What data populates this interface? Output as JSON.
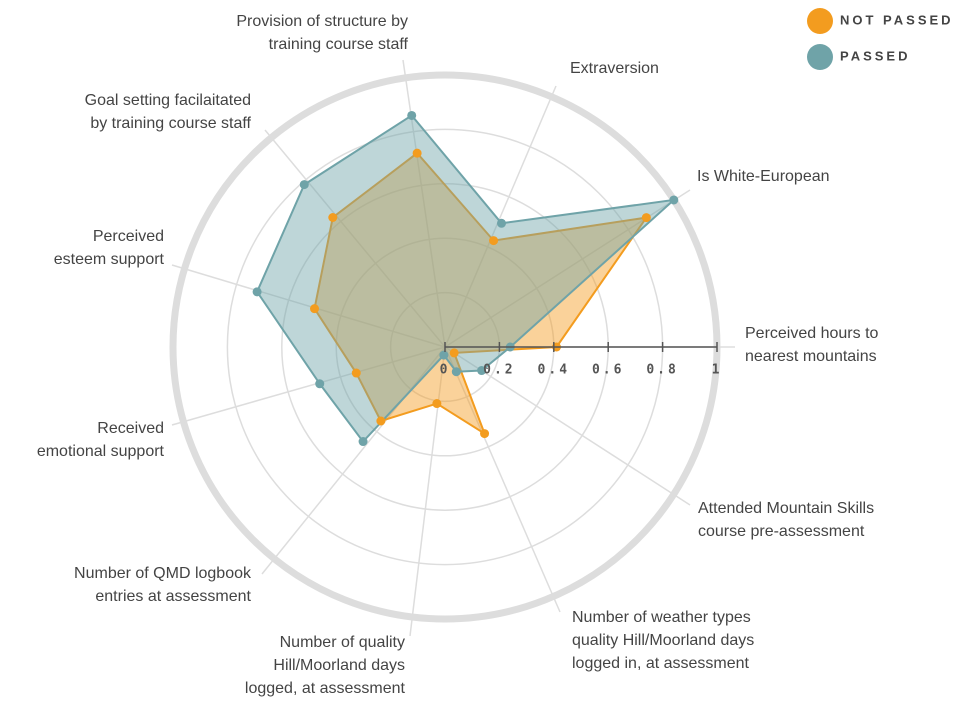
{
  "chart_data": {
    "type": "radar",
    "categories": [
      [
        "Perceived hours to",
        "nearest mountains"
      ],
      [
        "Is White-European"
      ],
      [
        "Extraversion"
      ],
      [
        "Provision of structure by",
        "training course staff"
      ],
      [
        "Goal setting facilaitated",
        "by training course staff"
      ],
      [
        "Perceived",
        "esteem support"
      ],
      [
        "Received",
        "emotional support"
      ],
      [
        "Number of QMD logbook",
        "entries at assessment"
      ],
      [
        "Number of quality",
        "Hill/Moorland days",
        "logged, at assessment"
      ],
      [
        "Number of weather types",
        "quality Hill/Moorland days",
        "logged in, at assessment"
      ],
      [
        "Attended Mountain Skills",
        "course pre-assessment"
      ]
    ],
    "series": [
      {
        "name": "NOT PASSED",
        "color": "#f39c1f",
        "values": [
          0.41,
          0.88,
          0.43,
          0.72,
          0.63,
          0.5,
          0.34,
          0.36,
          0.21,
          0.35,
          0.04
        ]
      },
      {
        "name": "PASSED",
        "color": "#6fa3a8",
        "values": [
          0.24,
          1.0,
          0.5,
          0.86,
          0.79,
          0.72,
          0.48,
          0.46,
          0.03,
          0.1,
          0.16
        ]
      }
    ],
    "rlim": [
      0,
      1
    ],
    "rticks": [
      0,
      0.2,
      0.4,
      0.6,
      0.8,
      1
    ],
    "grid": true
  }
}
